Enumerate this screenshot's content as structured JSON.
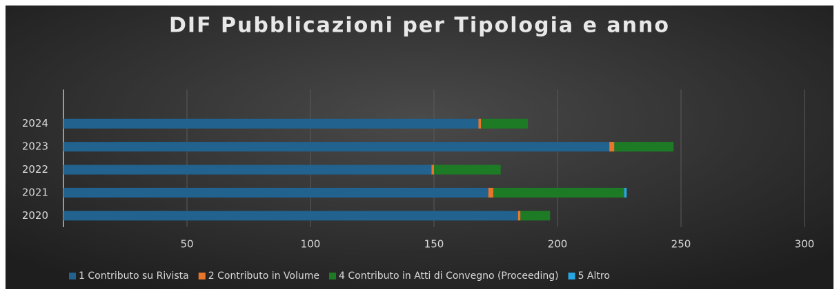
{
  "chart_data": {
    "type": "bar",
    "orientation": "horizontal",
    "stacked": true,
    "title": "DIF Pubblicazioni per Tipologia e anno",
    "categories": [
      "2020",
      "2021",
      "2022",
      "2023",
      "2024"
    ],
    "series": [
      {
        "name": "1 Contributo su Rivista",
        "color": "#21628e",
        "values": [
          184,
          172,
          149,
          221,
          168
        ]
      },
      {
        "name": "2 Contributo in Volume",
        "color": "#e8762b",
        "values": [
          1,
          2,
          1,
          2,
          1
        ]
      },
      {
        "name": "4 Contributo in Atti di Convegno (Proceeding)",
        "color": "#1e7b25",
        "values": [
          12,
          53,
          27,
          24,
          19
        ]
      },
      {
        "name": "5 Altro",
        "color": "#27a6e3",
        "values": [
          0,
          1,
          0,
          0,
          0
        ]
      }
    ],
    "xlim": [
      0,
      300
    ],
    "xticks": [
      50,
      100,
      150,
      200,
      250,
      300
    ],
    "grid": true,
    "legend": "bottom"
  }
}
